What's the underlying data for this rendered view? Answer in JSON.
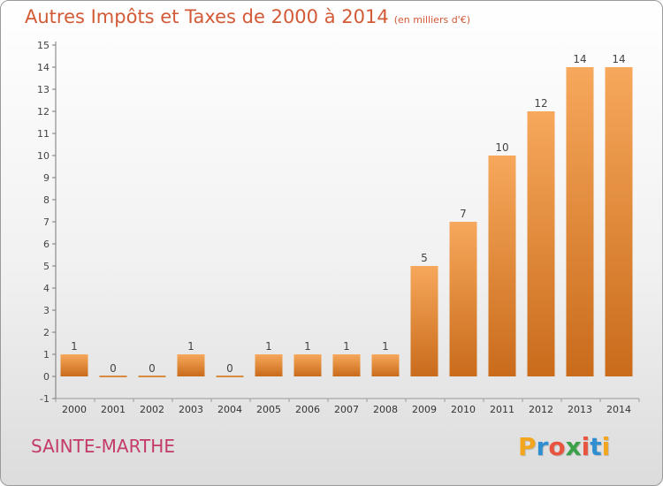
{
  "header": {
    "title": "Autres Impôts et Taxes de 2000 à 2014",
    "unit": "(en milliers d'€)"
  },
  "footer": {
    "commune": "SAINTE-MARTHE",
    "logo": "Proxiti",
    "logo_colors": [
      "#f2a61f",
      "#2f8fd0",
      "#e8543f",
      "#3aa14a",
      "#e8543f",
      "#2f8fd0",
      "#f2a61f"
    ]
  },
  "colors": {
    "bar_light": "#f7a85c",
    "bar_dark": "#c96b1b",
    "title": "#d25a36",
    "commune": "#c43a6a"
  },
  "chart_data": {
    "type": "bar",
    "categories": [
      "2000",
      "2001",
      "2002",
      "2003",
      "2004",
      "2005",
      "2006",
      "2007",
      "2008",
      "2009",
      "2010",
      "2011",
      "2012",
      "2013",
      "2014"
    ],
    "values": [
      1,
      0,
      0,
      1,
      0,
      1,
      1,
      1,
      1,
      5,
      7,
      10,
      12,
      14,
      14
    ],
    "data_labels": [
      "1",
      "0",
      "0",
      "1",
      "0",
      "1",
      "1",
      "1",
      "1",
      "5",
      "7",
      "10",
      "12",
      "14",
      "14"
    ],
    "ylim": [
      -1,
      15
    ],
    "yticks": [
      "-1",
      "0",
      "1",
      "2",
      "3",
      "4",
      "5",
      "6",
      "7",
      "8",
      "9",
      "10",
      "11",
      "12",
      "13",
      "14",
      "15"
    ],
    "title": "Autres Impôts et Taxes de 2000 à 2014",
    "grid": false
  }
}
